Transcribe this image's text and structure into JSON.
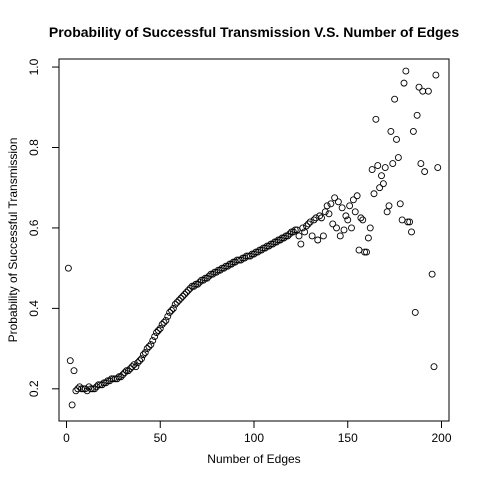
{
  "chart_data": {
    "type": "scatter",
    "title": "Probability of Successful Transmission V.S. Number of Edges",
    "xlabel": "Number of Edges",
    "ylabel": "Probability of Successful Transmission",
    "xlim": [
      -4,
      204
    ],
    "ylim": [
      0.12,
      1.02
    ],
    "xticks": [
      0,
      50,
      100,
      150,
      200
    ],
    "yticks": [
      0.2,
      0.4,
      0.6,
      0.8,
      1.0
    ],
    "ytick_labels": [
      "0.2",
      "0.4",
      "0.6",
      "0.8",
      "1.0"
    ],
    "grid": false,
    "marker": "open-circle",
    "points": [
      [
        1,
        0.5
      ],
      [
        2,
        0.27
      ],
      [
        3,
        0.16
      ],
      [
        4,
        0.245
      ],
      [
        5,
        0.195
      ],
      [
        6,
        0.2
      ],
      [
        7,
        0.205
      ],
      [
        8,
        0.2
      ],
      [
        9,
        0.2
      ],
      [
        10,
        0.2
      ],
      [
        11,
        0.195
      ],
      [
        12,
        0.205
      ],
      [
        13,
        0.2
      ],
      [
        14,
        0.2
      ],
      [
        15,
        0.2
      ],
      [
        16,
        0.205
      ],
      [
        17,
        0.21
      ],
      [
        18,
        0.21
      ],
      [
        19,
        0.21
      ],
      [
        20,
        0.215
      ],
      [
        21,
        0.215
      ],
      [
        22,
        0.22
      ],
      [
        23,
        0.22
      ],
      [
        24,
        0.225
      ],
      [
        25,
        0.225
      ],
      [
        26,
        0.225
      ],
      [
        27,
        0.225
      ],
      [
        28,
        0.23
      ],
      [
        29,
        0.23
      ],
      [
        30,
        0.235
      ],
      [
        31,
        0.24
      ],
      [
        32,
        0.245
      ],
      [
        33,
        0.245
      ],
      [
        34,
        0.25
      ],
      [
        35,
        0.255
      ],
      [
        36,
        0.26
      ],
      [
        37,
        0.255
      ],
      [
        38,
        0.265
      ],
      [
        39,
        0.27
      ],
      [
        40,
        0.275
      ],
      [
        41,
        0.285
      ],
      [
        42,
        0.29
      ],
      [
        43,
        0.3
      ],
      [
        44,
        0.305
      ],
      [
        45,
        0.31
      ],
      [
        46,
        0.32
      ],
      [
        47,
        0.33
      ],
      [
        48,
        0.34
      ],
      [
        49,
        0.345
      ],
      [
        50,
        0.35
      ],
      [
        51,
        0.36
      ],
      [
        52,
        0.365
      ],
      [
        53,
        0.37
      ],
      [
        54,
        0.38
      ],
      [
        55,
        0.39
      ],
      [
        56,
        0.395
      ],
      [
        57,
        0.4
      ],
      [
        58,
        0.41
      ],
      [
        59,
        0.415
      ],
      [
        60,
        0.42
      ],
      [
        61,
        0.425
      ],
      [
        62,
        0.43
      ],
      [
        63,
        0.435
      ],
      [
        64,
        0.44
      ],
      [
        65,
        0.445
      ],
      [
        66,
        0.45
      ],
      [
        67,
        0.455
      ],
      [
        68,
        0.455
      ],
      [
        69,
        0.46
      ],
      [
        70,
        0.46
      ],
      [
        71,
        0.465
      ],
      [
        72,
        0.47
      ],
      [
        73,
        0.47
      ],
      [
        74,
        0.475
      ],
      [
        75,
        0.475
      ],
      [
        76,
        0.48
      ],
      [
        77,
        0.485
      ],
      [
        78,
        0.485
      ],
      [
        79,
        0.49
      ],
      [
        80,
        0.49
      ],
      [
        81,
        0.495
      ],
      [
        82,
        0.495
      ],
      [
        83,
        0.5
      ],
      [
        84,
        0.5
      ],
      [
        85,
        0.505
      ],
      [
        86,
        0.505
      ],
      [
        87,
        0.51
      ],
      [
        88,
        0.51
      ],
      [
        89,
        0.515
      ],
      [
        90,
        0.515
      ],
      [
        91,
        0.52
      ],
      [
        92,
        0.52
      ],
      [
        93,
        0.52
      ],
      [
        94,
        0.525
      ],
      [
        95,
        0.525
      ],
      [
        96,
        0.53
      ],
      [
        97,
        0.53
      ],
      [
        98,
        0.53
      ],
      [
        99,
        0.535
      ],
      [
        100,
        0.535
      ],
      [
        101,
        0.54
      ],
      [
        102,
        0.54
      ],
      [
        103,
        0.545
      ],
      [
        104,
        0.545
      ],
      [
        105,
        0.55
      ],
      [
        106,
        0.55
      ],
      [
        107,
        0.555
      ],
      [
        108,
        0.555
      ],
      [
        109,
        0.56
      ],
      [
        110,
        0.56
      ],
      [
        111,
        0.565
      ],
      [
        112,
        0.565
      ],
      [
        113,
        0.57
      ],
      [
        114,
        0.57
      ],
      [
        115,
        0.575
      ],
      [
        116,
        0.575
      ],
      [
        117,
        0.58
      ],
      [
        118,
        0.58
      ],
      [
        119,
        0.585
      ],
      [
        120,
        0.59
      ],
      [
        121,
        0.59
      ],
      [
        122,
        0.595
      ],
      [
        123,
        0.595
      ],
      [
        124,
        0.58
      ],
      [
        125,
        0.56
      ],
      [
        126,
        0.6
      ],
      [
        127,
        0.59
      ],
      [
        128,
        0.605
      ],
      [
        129,
        0.61
      ],
      [
        130,
        0.615
      ],
      [
        131,
        0.58
      ],
      [
        132,
        0.62
      ],
      [
        133,
        0.625
      ],
      [
        134,
        0.57
      ],
      [
        135,
        0.63
      ],
      [
        136,
        0.625
      ],
      [
        137,
        0.58
      ],
      [
        138,
        0.64
      ],
      [
        139,
        0.655
      ],
      [
        140,
        0.635
      ],
      [
        141,
        0.66
      ],
      [
        142,
        0.61
      ],
      [
        143,
        0.675
      ],
      [
        144,
        0.6
      ],
      [
        145,
        0.665
      ],
      [
        146,
        0.58
      ],
      [
        147,
        0.65
      ],
      [
        148,
        0.595
      ],
      [
        149,
        0.63
      ],
      [
        150,
        0.62
      ],
      [
        151,
        0.655
      ],
      [
        152,
        0.6
      ],
      [
        153,
        0.67
      ],
      [
        154,
        0.64
      ],
      [
        155,
        0.68
      ],
      [
        156,
        0.545
      ],
      [
        157,
        0.625
      ],
      [
        158,
        0.62
      ],
      [
        159,
        0.54
      ],
      [
        160,
        0.54
      ],
      [
        161,
        0.575
      ],
      [
        162,
        0.6
      ],
      [
        163,
        0.745
      ],
      [
        164,
        0.685
      ],
      [
        165,
        0.87
      ],
      [
        166,
        0.755
      ],
      [
        167,
        0.7
      ],
      [
        168,
        0.73
      ],
      [
        169,
        0.71
      ],
      [
        170,
        0.75
      ],
      [
        171,
        0.64
      ],
      [
        172,
        0.655
      ],
      [
        173,
        0.84
      ],
      [
        174,
        0.76
      ],
      [
        175,
        0.92
      ],
      [
        176,
        0.82
      ],
      [
        177,
        0.775
      ],
      [
        178,
        0.66
      ],
      [
        179,
        0.62
      ],
      [
        180,
        0.96
      ],
      [
        181,
        0.99
      ],
      [
        182,
        0.615
      ],
      [
        183,
        0.615
      ],
      [
        184,
        0.59
      ],
      [
        185,
        0.84
      ],
      [
        186,
        0.39
      ],
      [
        187,
        0.88
      ],
      [
        188,
        0.95
      ],
      [
        189,
        0.76
      ],
      [
        190,
        0.94
      ],
      [
        191,
        0.74
      ],
      [
        193,
        0.94
      ],
      [
        195,
        0.485
      ],
      [
        196,
        0.255
      ],
      [
        197,
        0.98
      ],
      [
        198,
        0.75
      ]
    ]
  }
}
